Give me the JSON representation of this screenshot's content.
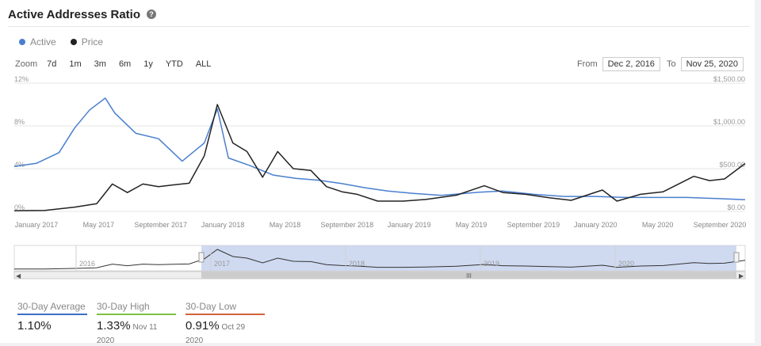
{
  "title": "Active Addresses Ratio",
  "help_icon": "?",
  "legend": [
    {
      "label": "Active",
      "color": "#4a7fcf"
    },
    {
      "label": "Price",
      "color": "#222222"
    }
  ],
  "zoom": {
    "label": "Zoom",
    "buttons": [
      "7d",
      "1m",
      "3m",
      "6m",
      "1y",
      "YTD",
      "ALL"
    ]
  },
  "range": {
    "from_label": "From",
    "from_value": "Dec 2, 2016",
    "to_label": "To",
    "to_value": "Nov 25, 2020"
  },
  "chart_data": {
    "type": "line",
    "x_tick_labels": [
      "January 2017",
      "May 2017",
      "September 2017",
      "January 2018",
      "May 2018",
      "September 2018",
      "January 2019",
      "May 2019",
      "September 2019",
      "January 2020",
      "May 2020",
      "September 2020"
    ],
    "y_left": {
      "range": [
        0,
        12
      ],
      "ticks": [
        "0%",
        "4%",
        "8%",
        "12%"
      ]
    },
    "y_right": {
      "range": [
        0,
        1500
      ],
      "ticks": [
        "$0.00",
        "$500.00",
        "$1,000.00",
        "$1,500.00"
      ]
    },
    "x_range": [
      "2016-12-02",
      "2020-11-25"
    ],
    "grid": true,
    "series": [
      {
        "name": "Active",
        "axis": "left",
        "color": "#4a7fcf",
        "x": [
          "2016-12-02",
          "2017-01-15",
          "2017-03-01",
          "2017-04-01",
          "2017-05-01",
          "2017-06-01",
          "2017-06-20",
          "2017-08-01",
          "2017-09-15",
          "2017-11-01",
          "2017-12-15",
          "2018-01-10",
          "2018-02-01",
          "2018-03-15",
          "2018-05-01",
          "2018-06-15",
          "2018-08-01",
          "2018-09-15",
          "2018-11-01",
          "2018-12-15",
          "2019-02-01",
          "2019-04-01",
          "2019-06-15",
          "2019-08-01",
          "2019-10-01",
          "2019-12-01",
          "2020-02-01",
          "2020-04-01",
          "2020-06-01",
          "2020-08-01",
          "2020-10-01",
          "2020-11-25"
        ],
        "values": [
          4.2,
          4.5,
          5.5,
          7.8,
          9.5,
          10.6,
          9.2,
          7.3,
          6.8,
          4.7,
          6.4,
          9.6,
          5.0,
          4.3,
          3.4,
          3.1,
          2.9,
          2.6,
          2.2,
          1.9,
          1.7,
          1.5,
          1.8,
          1.9,
          1.6,
          1.4,
          1.4,
          1.3,
          1.3,
          1.3,
          1.2,
          1.1
        ]
      },
      {
        "name": "Price",
        "axis": "right",
        "color": "#222222",
        "x": [
          "2016-12-02",
          "2017-02-01",
          "2017-04-01",
          "2017-05-15",
          "2017-06-15",
          "2017-07-15",
          "2017-08-15",
          "2017-09-15",
          "2017-10-15",
          "2017-11-15",
          "2017-12-15",
          "2018-01-10",
          "2018-02-10",
          "2018-03-10",
          "2018-04-10",
          "2018-05-10",
          "2018-06-10",
          "2018-07-15",
          "2018-08-15",
          "2018-09-15",
          "2018-10-15",
          "2018-11-25",
          "2019-01-15",
          "2019-03-01",
          "2019-05-01",
          "2019-06-25",
          "2019-08-01",
          "2019-09-15",
          "2019-11-01",
          "2019-12-15",
          "2020-02-15",
          "2020-03-15",
          "2020-05-01",
          "2020-06-15",
          "2020-08-15",
          "2020-09-15",
          "2020-10-15",
          "2020-11-25"
        ],
        "values": [
          8,
          12,
          50,
          90,
          320,
          220,
          320,
          290,
          310,
          330,
          650,
          1250,
          800,
          700,
          400,
          700,
          500,
          480,
          290,
          230,
          200,
          120,
          120,
          140,
          190,
          300,
          220,
          200,
          160,
          130,
          250,
          120,
          200,
          230,
          410,
          360,
          380,
          560
        ]
      }
    ],
    "stats": [
      {
        "title": "30-Day Average",
        "value": "1.10%",
        "date": "",
        "color": "#3c6fc4"
      },
      {
        "title": "30-Day High",
        "value": "1.33%",
        "date": "Nov 11 2020",
        "color": "#7dc142"
      },
      {
        "title": "30-Day Low",
        "value": "0.91%",
        "date": "Oct 29 2020",
        "color": "#d2623c"
      }
    ],
    "navigator": {
      "labels": [
        "2016",
        "2017",
        "2018",
        "2019",
        "2020"
      ],
      "selected_from": "2016-12-02",
      "selected_to": "2020-11-25",
      "scroll_grip": "III"
    }
  }
}
